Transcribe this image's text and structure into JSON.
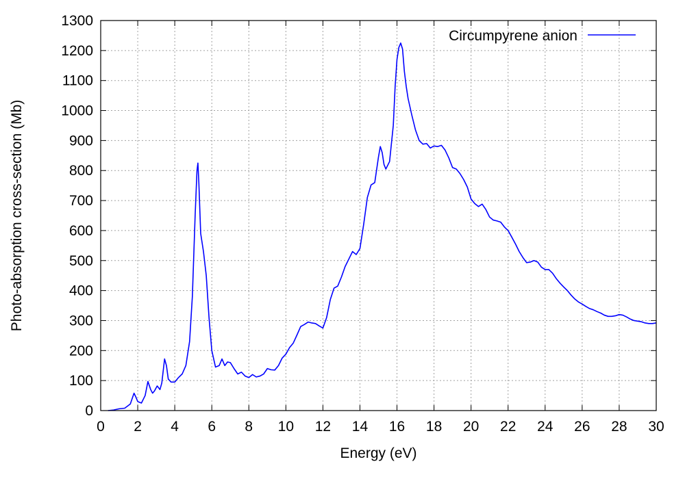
{
  "chart_data": {
    "type": "line",
    "title": "",
    "xlabel": "Energy (eV)",
    "ylabel": "Photo-absorption cross-section (Mb)",
    "xlim": [
      0,
      30
    ],
    "ylim": [
      0,
      1300
    ],
    "xticks": [
      0,
      2,
      4,
      6,
      8,
      10,
      12,
      14,
      16,
      18,
      20,
      22,
      24,
      26,
      28,
      30
    ],
    "yticks": [
      0,
      100,
      200,
      300,
      400,
      500,
      600,
      700,
      800,
      900,
      1000,
      1100,
      1200,
      1300
    ],
    "grid": true,
    "legend_position": "top-right",
    "series": [
      {
        "name": "Circumpyrene anion",
        "color": "#0000ff",
        "points": [
          [
            0.4,
            0
          ],
          [
            0.7,
            2
          ],
          [
            1.0,
            6
          ],
          [
            1.3,
            8
          ],
          [
            1.6,
            22
          ],
          [
            1.8,
            58
          ],
          [
            1.9,
            45
          ],
          [
            2.0,
            30
          ],
          [
            2.2,
            25
          ],
          [
            2.4,
            50
          ],
          [
            2.55,
            97
          ],
          [
            2.7,
            70
          ],
          [
            2.8,
            58
          ],
          [
            2.9,
            65
          ],
          [
            3.05,
            82
          ],
          [
            3.2,
            70
          ],
          [
            3.3,
            92
          ],
          [
            3.45,
            172
          ],
          [
            3.55,
            150
          ],
          [
            3.65,
            105
          ],
          [
            3.8,
            95
          ],
          [
            4.0,
            95
          ],
          [
            4.2,
            110
          ],
          [
            4.4,
            122
          ],
          [
            4.6,
            150
          ],
          [
            4.8,
            230
          ],
          [
            4.95,
            380
          ],
          [
            5.1,
            650
          ],
          [
            5.2,
            800
          ],
          [
            5.25,
            825
          ],
          [
            5.3,
            760
          ],
          [
            5.4,
            590
          ],
          [
            5.55,
            530
          ],
          [
            5.7,
            450
          ],
          [
            5.85,
            310
          ],
          [
            6.0,
            200
          ],
          [
            6.2,
            145
          ],
          [
            6.4,
            150
          ],
          [
            6.55,
            172
          ],
          [
            6.7,
            150
          ],
          [
            6.85,
            162
          ],
          [
            7.0,
            160
          ],
          [
            7.2,
            140
          ],
          [
            7.4,
            122
          ],
          [
            7.6,
            128
          ],
          [
            7.8,
            115
          ],
          [
            8.0,
            110
          ],
          [
            8.2,
            120
          ],
          [
            8.4,
            112
          ],
          [
            8.6,
            115
          ],
          [
            8.8,
            122
          ],
          [
            9.0,
            140
          ],
          [
            9.2,
            136
          ],
          [
            9.4,
            135
          ],
          [
            9.6,
            150
          ],
          [
            9.8,
            175
          ],
          [
            10.0,
            188
          ],
          [
            10.2,
            210
          ],
          [
            10.4,
            225
          ],
          [
            10.6,
            252
          ],
          [
            10.8,
            280
          ],
          [
            11.0,
            287
          ],
          [
            11.2,
            295
          ],
          [
            11.4,
            292
          ],
          [
            11.6,
            290
          ],
          [
            11.8,
            282
          ],
          [
            12.0,
            275
          ],
          [
            12.2,
            310
          ],
          [
            12.4,
            370
          ],
          [
            12.6,
            408
          ],
          [
            12.8,
            415
          ],
          [
            13.0,
            445
          ],
          [
            13.2,
            480
          ],
          [
            13.4,
            505
          ],
          [
            13.6,
            530
          ],
          [
            13.8,
            520
          ],
          [
            14.0,
            540
          ],
          [
            14.2,
            620
          ],
          [
            14.4,
            710
          ],
          [
            14.6,
            752
          ],
          [
            14.8,
            760
          ],
          [
            15.0,
            845
          ],
          [
            15.1,
            880
          ],
          [
            15.2,
            860
          ],
          [
            15.3,
            820
          ],
          [
            15.4,
            805
          ],
          [
            15.6,
            830
          ],
          [
            15.8,
            950
          ],
          [
            15.9,
            1080
          ],
          [
            16.0,
            1170
          ],
          [
            16.1,
            1210
          ],
          [
            16.2,
            1225
          ],
          [
            16.3,
            1205
          ],
          [
            16.4,
            1130
          ],
          [
            16.5,
            1080
          ],
          [
            16.6,
            1040
          ],
          [
            16.8,
            985
          ],
          [
            17.0,
            935
          ],
          [
            17.2,
            900
          ],
          [
            17.4,
            888
          ],
          [
            17.6,
            890
          ],
          [
            17.8,
            875
          ],
          [
            18.0,
            882
          ],
          [
            18.2,
            880
          ],
          [
            18.4,
            884
          ],
          [
            18.6,
            868
          ],
          [
            18.8,
            842
          ],
          [
            19.0,
            810
          ],
          [
            19.2,
            805
          ],
          [
            19.4,
            790
          ],
          [
            19.6,
            770
          ],
          [
            19.8,
            745
          ],
          [
            20.0,
            705
          ],
          [
            20.2,
            690
          ],
          [
            20.4,
            680
          ],
          [
            20.6,
            688
          ],
          [
            20.8,
            670
          ],
          [
            21.0,
            645
          ],
          [
            21.2,
            635
          ],
          [
            21.4,
            632
          ],
          [
            21.6,
            628
          ],
          [
            21.8,
            612
          ],
          [
            22.0,
            600
          ],
          [
            22.2,
            578
          ],
          [
            22.4,
            555
          ],
          [
            22.6,
            530
          ],
          [
            22.8,
            510
          ],
          [
            23.0,
            493
          ],
          [
            23.2,
            495
          ],
          [
            23.4,
            500
          ],
          [
            23.6,
            495
          ],
          [
            23.8,
            478
          ],
          [
            24.0,
            470
          ],
          [
            24.2,
            470
          ],
          [
            24.4,
            458
          ],
          [
            24.6,
            440
          ],
          [
            24.8,
            425
          ],
          [
            25.0,
            412
          ],
          [
            25.2,
            400
          ],
          [
            25.4,
            385
          ],
          [
            25.6,
            372
          ],
          [
            25.8,
            362
          ],
          [
            26.0,
            355
          ],
          [
            26.2,
            347
          ],
          [
            26.4,
            340
          ],
          [
            26.6,
            336
          ],
          [
            26.8,
            330
          ],
          [
            27.0,
            325
          ],
          [
            27.2,
            318
          ],
          [
            27.4,
            314
          ],
          [
            27.6,
            314
          ],
          [
            27.8,
            316
          ],
          [
            28.0,
            320
          ],
          [
            28.2,
            318
          ],
          [
            28.4,
            312
          ],
          [
            28.6,
            305
          ],
          [
            28.8,
            300
          ],
          [
            29.0,
            298
          ],
          [
            29.2,
            296
          ],
          [
            29.4,
            292
          ],
          [
            29.6,
            290
          ],
          [
            29.8,
            290
          ],
          [
            30.0,
            292
          ]
        ]
      }
    ]
  }
}
